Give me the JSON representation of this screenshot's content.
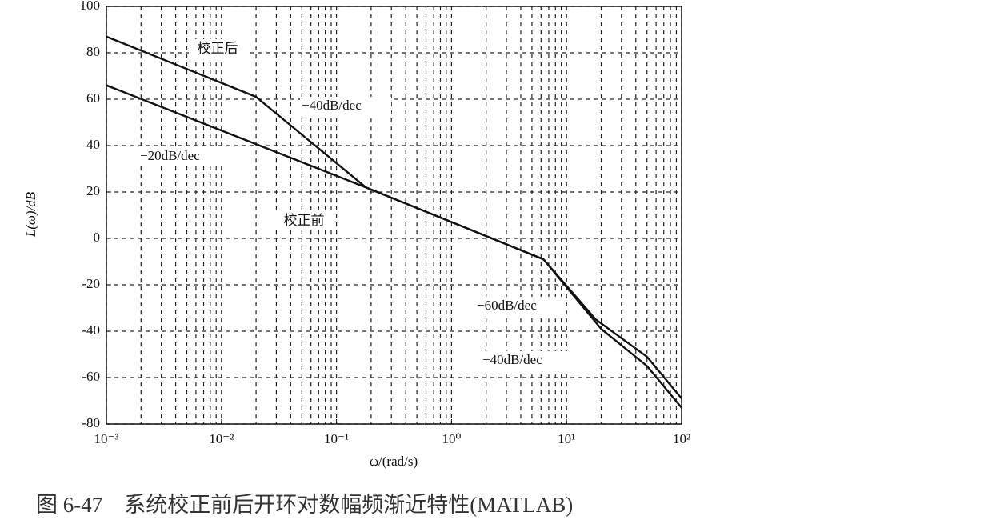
{
  "chart_data": {
    "type": "line",
    "x_label": "ω/(rad/s)",
    "y_label": "L(ω)/dB",
    "caption": "图 6-47　系统校正前后开环对数幅频渐近特性(MATLAB)",
    "x_scale": "log",
    "xlim": [
      0.001,
      100
    ],
    "xticks": [
      {
        "value": 0.001,
        "label": "10⁻³"
      },
      {
        "value": 0.01,
        "label": "10⁻²"
      },
      {
        "value": 0.1,
        "label": "10⁻¹"
      },
      {
        "value": 1,
        "label": "10⁰"
      },
      {
        "value": 10,
        "label": "10¹"
      },
      {
        "value": 100,
        "label": "10²"
      }
    ],
    "ylim": [
      -80,
      100
    ],
    "yticks": [
      -80,
      -60,
      -40,
      -20,
      0,
      20,
      40,
      60,
      80,
      100
    ],
    "grid": true,
    "minor_grid": true,
    "series": [
      {
        "name": "校正后",
        "color": "#111111",
        "x": [
          0.001,
          0.02,
          0.18,
          6.3,
          20,
          50,
          100
        ],
        "values": [
          87,
          61,
          22,
          -9,
          -39,
          -55,
          -73
        ]
      },
      {
        "name": "校正前",
        "color": "#111111",
        "x": [
          0.001,
          0.18,
          6.3,
          18,
          50,
          100
        ],
        "values": [
          66,
          22,
          -9,
          -35,
          -51,
          -69
        ]
      }
    ],
    "annotations": [
      "−40dB/dec",
      "−20dB/dec",
      "−60dB/dec",
      "−40dB/dec"
    ]
  }
}
